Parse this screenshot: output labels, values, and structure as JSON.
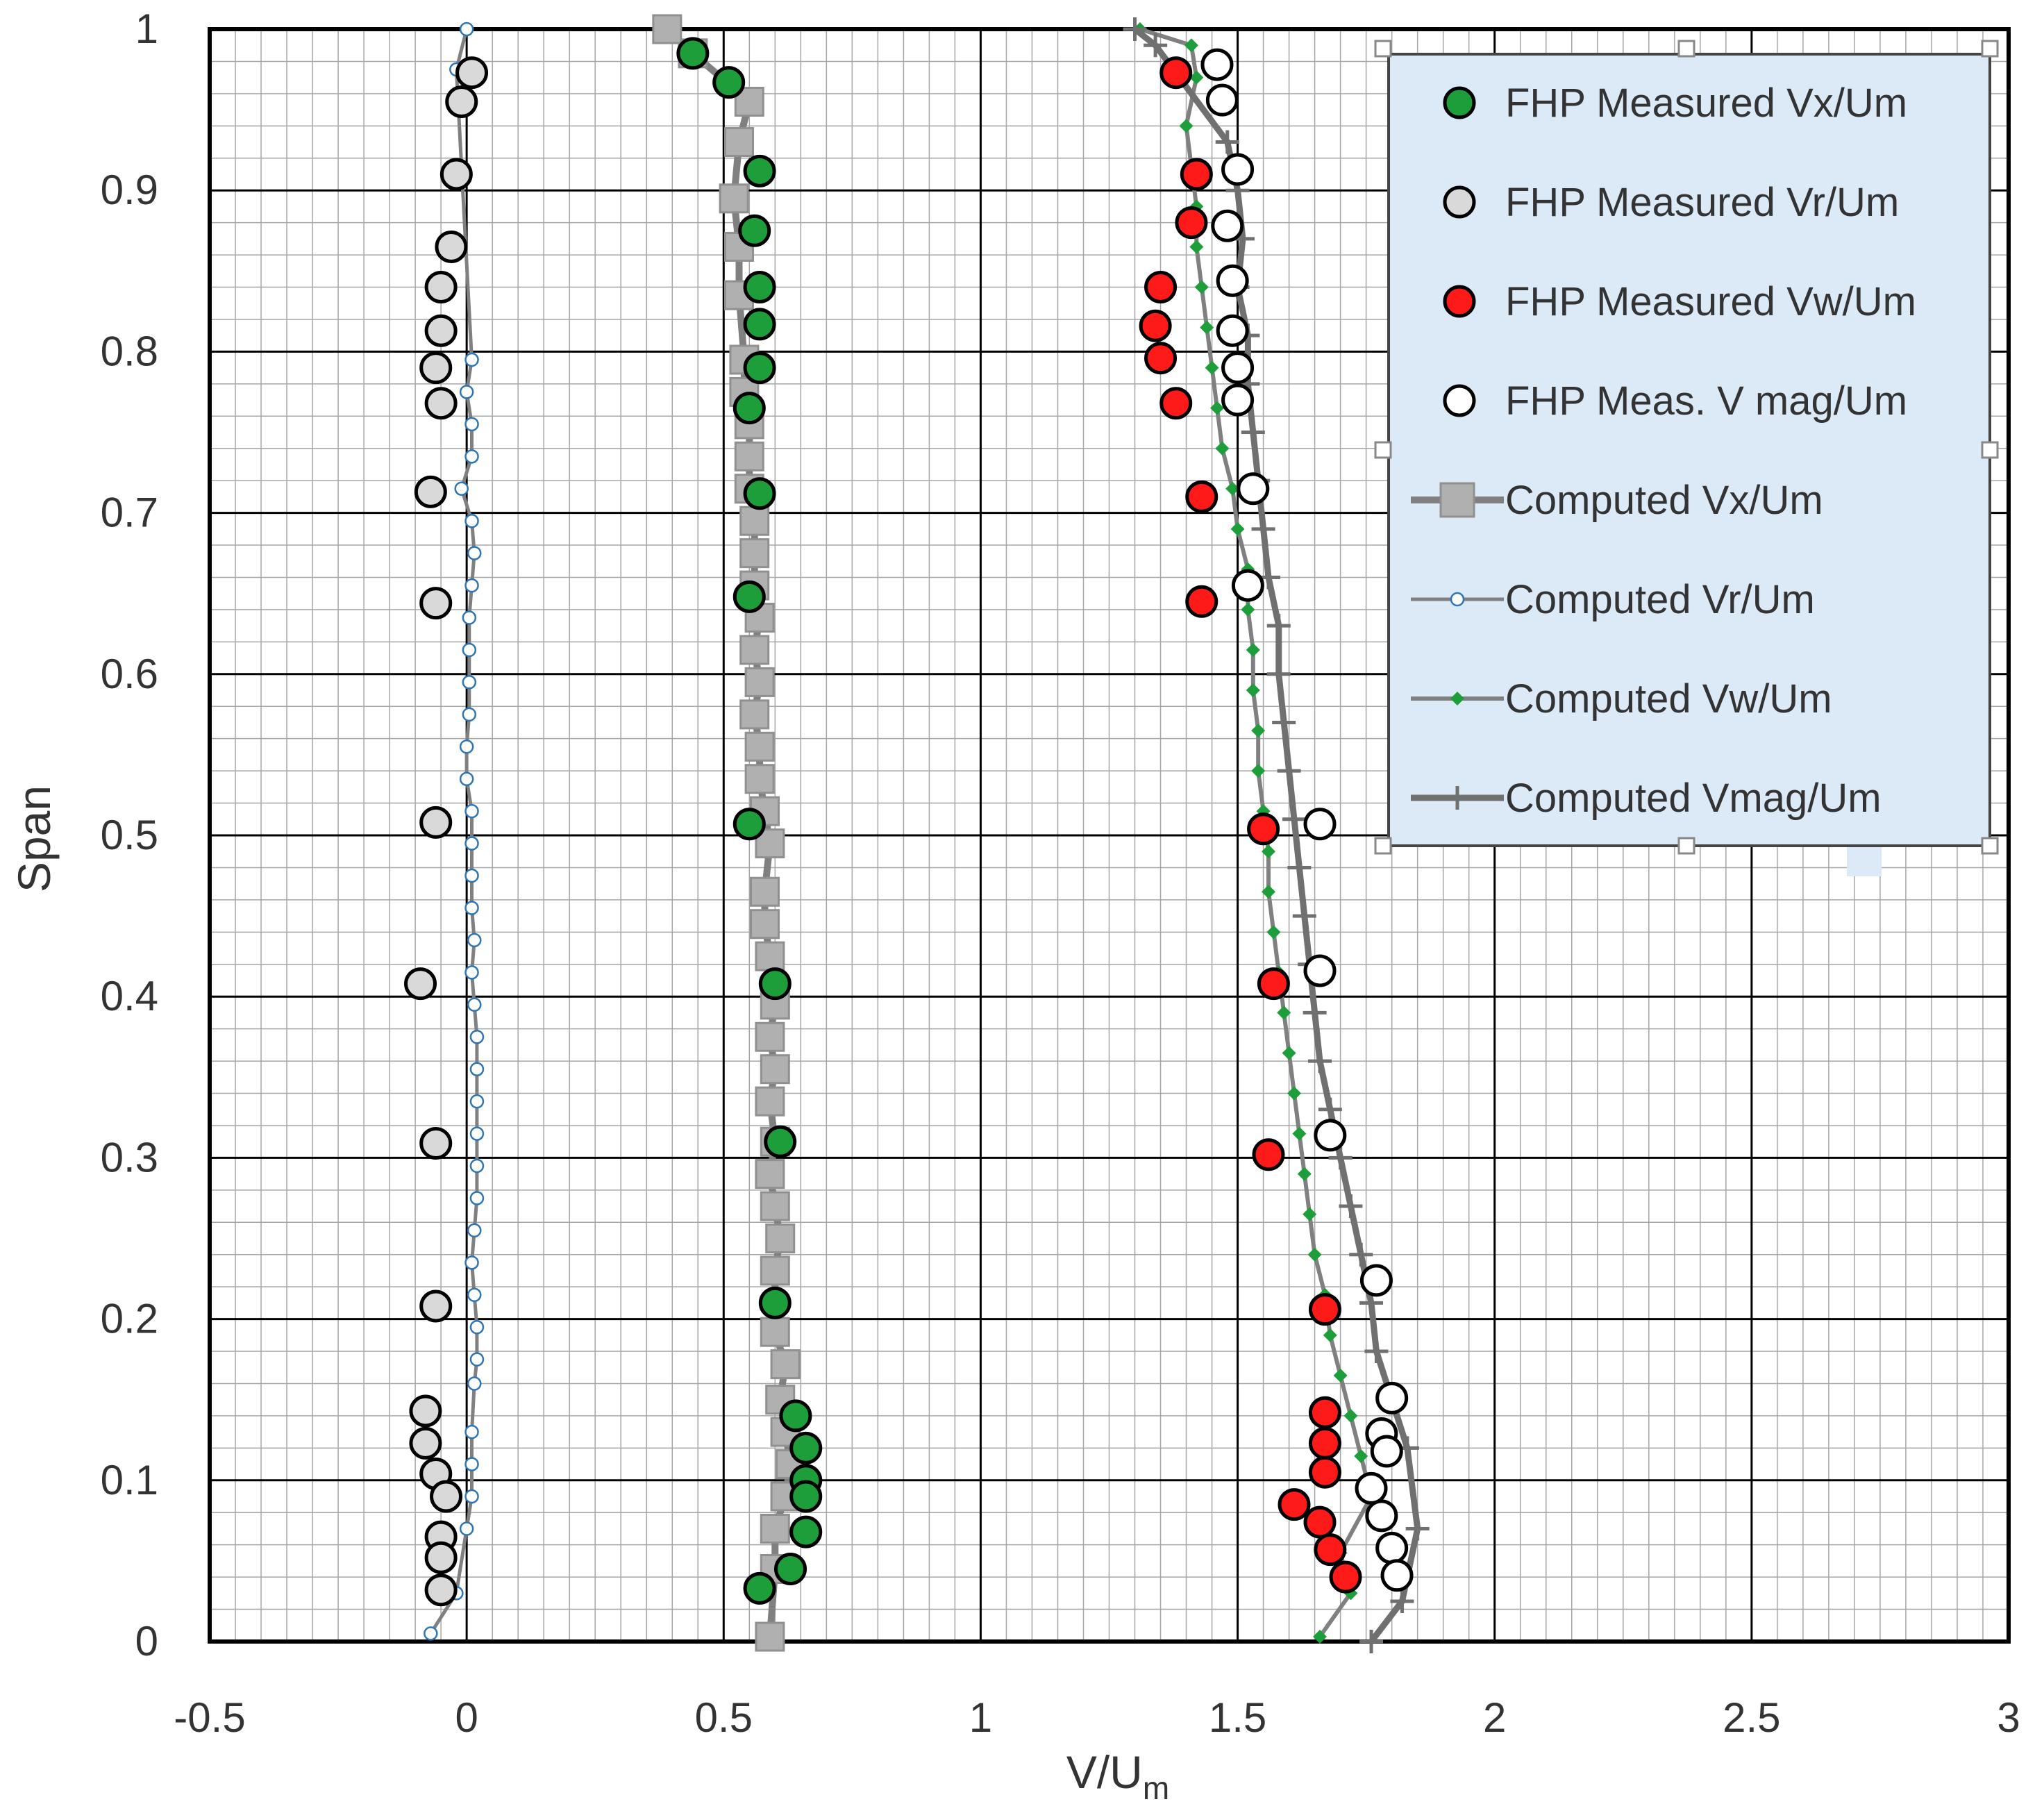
{
  "chart_data": {
    "type": "scatter",
    "title": "",
    "xlabel_main": "V/U",
    "xlabel_sub": "m",
    "ylabel": "Span",
    "xlim": [
      -0.5,
      3
    ],
    "ylim": [
      0,
      1
    ],
    "grid": true,
    "legend_position": "top-right",
    "x_ticks": [
      {
        "value": -0.5,
        "label": "-0.5"
      },
      {
        "value": 0,
        "label": "0"
      },
      {
        "value": 0.5,
        "label": "0.5"
      },
      {
        "value": 1,
        "label": "1"
      },
      {
        "value": 1.5,
        "label": "1.5"
      },
      {
        "value": 2,
        "label": "2"
      },
      {
        "value": 2.5,
        "label": "2.5"
      },
      {
        "value": 3,
        "label": "3"
      }
    ],
    "y_ticks": [
      {
        "value": 0,
        "label": "0"
      },
      {
        "value": 0.1,
        "label": "0.1"
      },
      {
        "value": 0.2,
        "label": "0.2"
      },
      {
        "value": 0.3,
        "label": "0.3"
      },
      {
        "value": 0.4,
        "label": "0.4"
      },
      {
        "value": 0.5,
        "label": "0.5"
      },
      {
        "value": 0.6,
        "label": "0.6"
      },
      {
        "value": 0.7,
        "label": "0.7"
      },
      {
        "value": 0.8,
        "label": "0.8"
      },
      {
        "value": 0.9,
        "label": "0.9"
      },
      {
        "value": 1,
        "label": "1"
      }
    ],
    "series": [
      {
        "name": "Computed Vx/Um",
        "kind": "line",
        "marker": "square",
        "color": "#808080",
        "fill": "#b0b0b0",
        "edge": "#909090",
        "x": [
          0.59,
          0.6,
          0.6,
          0.62,
          0.63,
          0.62,
          0.61,
          0.62,
          0.6,
          0.6,
          0.61,
          0.6,
          0.59,
          0.6,
          0.59,
          0.6,
          0.59,
          0.6,
          0.59,
          0.58,
          0.58,
          0.59,
          0.58,
          0.57,
          0.57,
          0.56,
          0.57,
          0.56,
          0.57,
          0.56,
          0.56,
          0.56,
          0.55,
          0.55,
          0.55,
          0.54,
          0.54,
          0.53,
          0.53,
          0.52,
          0.53,
          0.55,
          0.44,
          0.39
        ],
        "y": [
          0.003,
          0.045,
          0.07,
          0.09,
          0.11,
          0.13,
          0.15,
          0.172,
          0.192,
          0.23,
          0.25,
          0.27,
          0.29,
          0.31,
          0.335,
          0.355,
          0.375,
          0.395,
          0.425,
          0.445,
          0.465,
          0.495,
          0.515,
          0.535,
          0.555,
          0.575,
          0.595,
          0.615,
          0.635,
          0.655,
          0.675,
          0.695,
          0.715,
          0.735,
          0.755,
          0.775,
          0.795,
          0.835,
          0.865,
          0.895,
          0.93,
          0.955,
          0.985,
          1.0
        ]
      },
      {
        "name": "Computed Vr/Um",
        "kind": "line",
        "marker": "circle",
        "color": "#808080",
        "fill": "#ffffff",
        "edge": "#2e75b6",
        "x": [
          -0.07,
          -0.02,
          0.0,
          0.01,
          0.01,
          0.01,
          0.015,
          0.02,
          0.02,
          0.015,
          0.01,
          0.015,
          0.02,
          0.02,
          0.02,
          0.02,
          0.02,
          0.02,
          0.015,
          0.01,
          0.015,
          0.01,
          0.01,
          0.01,
          0.01,
          0.0,
          0.0,
          0.005,
          0.005,
          0.005,
          0.005,
          0.01,
          0.015,
          0.01,
          -0.01,
          0.01,
          0.01,
          0.0,
          0.01,
          -0.02,
          0.0
        ],
        "y": [
          0.005,
          0.03,
          0.07,
          0.09,
          0.11,
          0.13,
          0.16,
          0.175,
          0.195,
          0.215,
          0.235,
          0.255,
          0.275,
          0.295,
          0.315,
          0.335,
          0.355,
          0.375,
          0.395,
          0.415,
          0.435,
          0.455,
          0.475,
          0.495,
          0.515,
          0.535,
          0.555,
          0.575,
          0.595,
          0.615,
          0.635,
          0.655,
          0.675,
          0.695,
          0.715,
          0.735,
          0.755,
          0.775,
          0.795,
          0.975,
          1.0
        ]
      },
      {
        "name": "Computed Vw/Um",
        "kind": "line",
        "marker": "diamond",
        "color": "#808080",
        "fill": "#1e9e3a",
        "edge": "#1e9e3a",
        "x": [
          1.66,
          1.72,
          1.7,
          1.76,
          1.74,
          1.72,
          1.7,
          1.68,
          1.67,
          1.65,
          1.64,
          1.63,
          1.62,
          1.61,
          1.6,
          1.59,
          1.58,
          1.57,
          1.56,
          1.56,
          1.55,
          1.54,
          1.54,
          1.53,
          1.53,
          1.52,
          1.52,
          1.5,
          1.49,
          1.47,
          1.46,
          1.45,
          1.44,
          1.43,
          1.42,
          1.42,
          1.41,
          1.4,
          1.42,
          1.41,
          1.31
        ],
        "y": [
          0.003,
          0.03,
          0.055,
          0.09,
          0.115,
          0.14,
          0.165,
          0.19,
          0.215,
          0.24,
          0.265,
          0.29,
          0.315,
          0.34,
          0.365,
          0.39,
          0.415,
          0.44,
          0.465,
          0.49,
          0.515,
          0.54,
          0.565,
          0.59,
          0.615,
          0.64,
          0.665,
          0.69,
          0.715,
          0.74,
          0.765,
          0.79,
          0.815,
          0.84,
          0.865,
          0.89,
          0.915,
          0.94,
          0.97,
          0.99,
          1.0
        ]
      },
      {
        "name": "Computed  Vmag/Um",
        "kind": "line",
        "marker": "plus",
        "color": "#707070",
        "fill": "#707070",
        "edge": "#707070",
        "x": [
          1.76,
          1.82,
          1.85,
          1.83,
          1.8,
          1.77,
          1.76,
          1.74,
          1.72,
          1.7,
          1.68,
          1.66,
          1.65,
          1.64,
          1.63,
          1.62,
          1.61,
          1.6,
          1.59,
          1.58,
          1.58,
          1.56,
          1.55,
          1.54,
          1.53,
          1.52,
          1.52,
          1.5,
          1.51,
          1.5,
          1.48,
          1.34,
          1.3
        ],
        "y": [
          0.0,
          0.025,
          0.07,
          0.12,
          0.15,
          0.18,
          0.21,
          0.24,
          0.27,
          0.3,
          0.33,
          0.36,
          0.39,
          0.42,
          0.45,
          0.48,
          0.51,
          0.54,
          0.57,
          0.6,
          0.63,
          0.66,
          0.69,
          0.72,
          0.75,
          0.78,
          0.81,
          0.84,
          0.87,
          0.9,
          0.93,
          0.99,
          1.0
        ]
      },
      {
        "name": "FHP Measured Vx/Um",
        "kind": "scatter",
        "marker": "circle",
        "color": "#1e9e3a",
        "fill": "#1e9e3a",
        "edge": "#000000",
        "x": [
          0.44,
          0.51,
          0.57,
          0.56,
          0.57,
          0.57,
          0.57,
          0.55,
          0.57,
          0.55,
          0.55,
          0.6,
          0.61,
          0.6,
          0.64,
          0.66,
          0.66,
          0.66,
          0.66,
          0.63,
          0.57
        ],
        "y": [
          0.985,
          0.967,
          0.912,
          0.875,
          0.84,
          0.817,
          0.79,
          0.765,
          0.712,
          0.648,
          0.507,
          0.408,
          0.31,
          0.21,
          0.14,
          0.12,
          0.1,
          0.09,
          0.068,
          0.045,
          0.033
        ]
      },
      {
        "name": "FHP Measured Vr/Um",
        "kind": "scatter",
        "marker": "circle",
        "color": "#d9d9d9",
        "fill": "#d9d9d9",
        "edge": "#000000",
        "x": [
          0.01,
          -0.01,
          -0.02,
          -0.03,
          -0.05,
          -0.05,
          -0.06,
          -0.05,
          -0.07,
          -0.06,
          -0.06,
          -0.09,
          -0.06,
          -0.06,
          -0.08,
          -0.08,
          -0.06,
          -0.04,
          -0.05,
          -0.05,
          -0.05
        ],
        "y": [
          0.973,
          0.955,
          0.91,
          0.865,
          0.84,
          0.813,
          0.79,
          0.768,
          0.713,
          0.644,
          0.508,
          0.408,
          0.309,
          0.208,
          0.143,
          0.123,
          0.104,
          0.09,
          0.065,
          0.052,
          0.032
        ]
      },
      {
        "name": "FHP Measured Vw/Um",
        "kind": "scatter",
        "marker": "circle",
        "color": "#ff0000",
        "fill": "#ff1a1a",
        "edge": "#000000",
        "x": [
          1.38,
          1.42,
          1.41,
          1.35,
          1.34,
          1.35,
          1.38,
          1.43,
          1.43,
          1.55,
          1.57,
          1.56,
          1.67,
          1.67,
          1.67,
          1.67,
          1.61,
          1.66,
          1.68,
          1.71
        ],
        "y": [
          0.973,
          0.91,
          0.88,
          0.84,
          0.816,
          0.796,
          0.768,
          0.71,
          0.645,
          0.504,
          0.408,
          0.302,
          0.206,
          0.142,
          0.123,
          0.105,
          0.085,
          0.074,
          0.057,
          0.04
        ]
      },
      {
        "name": "FHP Meas. V mag/Um",
        "kind": "scatter",
        "marker": "circle",
        "color": "#ffffff",
        "fill": "#ffffff",
        "edge": "#000000",
        "x": [
          1.46,
          1.47,
          1.5,
          1.48,
          1.49,
          1.49,
          1.5,
          1.5,
          1.53,
          1.52,
          1.66,
          1.66,
          1.68,
          1.77,
          1.8,
          1.78,
          1.79,
          1.76,
          1.78,
          1.8,
          1.81
        ],
        "y": [
          0.978,
          0.956,
          0.913,
          0.878,
          0.844,
          0.813,
          0.79,
          0.77,
          0.715,
          0.655,
          0.507,
          0.416,
          0.314,
          0.224,
          0.151,
          0.129,
          0.118,
          0.095,
          0.078,
          0.058,
          0.041
        ]
      }
    ]
  },
  "legend": [
    {
      "label": "FHP Measured Vx/Um",
      "series": 4
    },
    {
      "label": "FHP Measured Vr/Um",
      "series": 5
    },
    {
      "label": "FHP Measured Vw/Um",
      "series": 6
    },
    {
      "label": "FHP Meas. V mag/Um",
      "series": 7
    },
    {
      "label": "Computed Vx/Um",
      "series": 0
    },
    {
      "label": "Computed Vr/Um",
      "series": 1
    },
    {
      "label": "Computed Vw/Um",
      "series": 2
    },
    {
      "label": "Computed  Vmag/Um",
      "series": 3
    }
  ],
  "colors": {
    "legend_bg": "#dce9f7",
    "legend_border": "#444444",
    "grid_major": "#000000",
    "grid_minor": "#a6a6a6",
    "text": "#333333"
  }
}
